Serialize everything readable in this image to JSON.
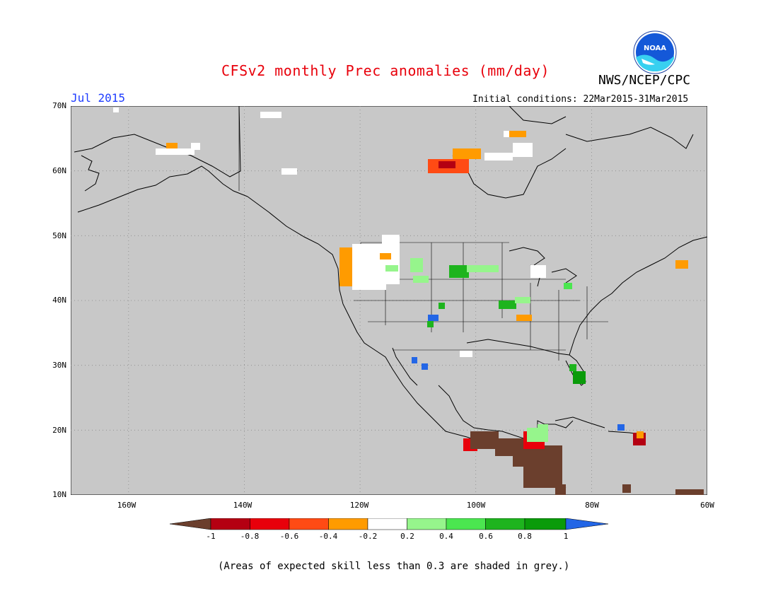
{
  "header": {
    "title": "CFSv2 monthly Prec anomalies (mm/day)",
    "agency": "NWS/NCEP/CPC",
    "period": "Jul 2015",
    "initial_conditions": "Initial conditions: 22Mar2015-31Mar2015",
    "logo_text": "NOAA"
  },
  "map": {
    "lat_labels": [
      "70N",
      "60N",
      "50N",
      "40N",
      "30N",
      "20N",
      "10N"
    ],
    "lon_labels": [
      "160W",
      "140W",
      "120W",
      "100W",
      "80W",
      "60W"
    ],
    "background_color": "#c8c8c8"
  },
  "colorbar": {
    "labels": [
      "-1",
      "-0.8",
      "-0.6",
      "-0.4",
      "-0.2",
      "0.2",
      "0.4",
      "0.6",
      "0.8",
      "1"
    ],
    "colors": [
      "#6b3f2d",
      "#b40012",
      "#e8000b",
      "#ff4b14",
      "#ff9b00",
      "#ffffff",
      "#96f58c",
      "#4be650",
      "#1eb41e",
      "#0a9b0a",
      "#2366e6"
    ]
  },
  "footnote": "(Areas of expected skill less than 0.3 are shaded in grey.)"
}
